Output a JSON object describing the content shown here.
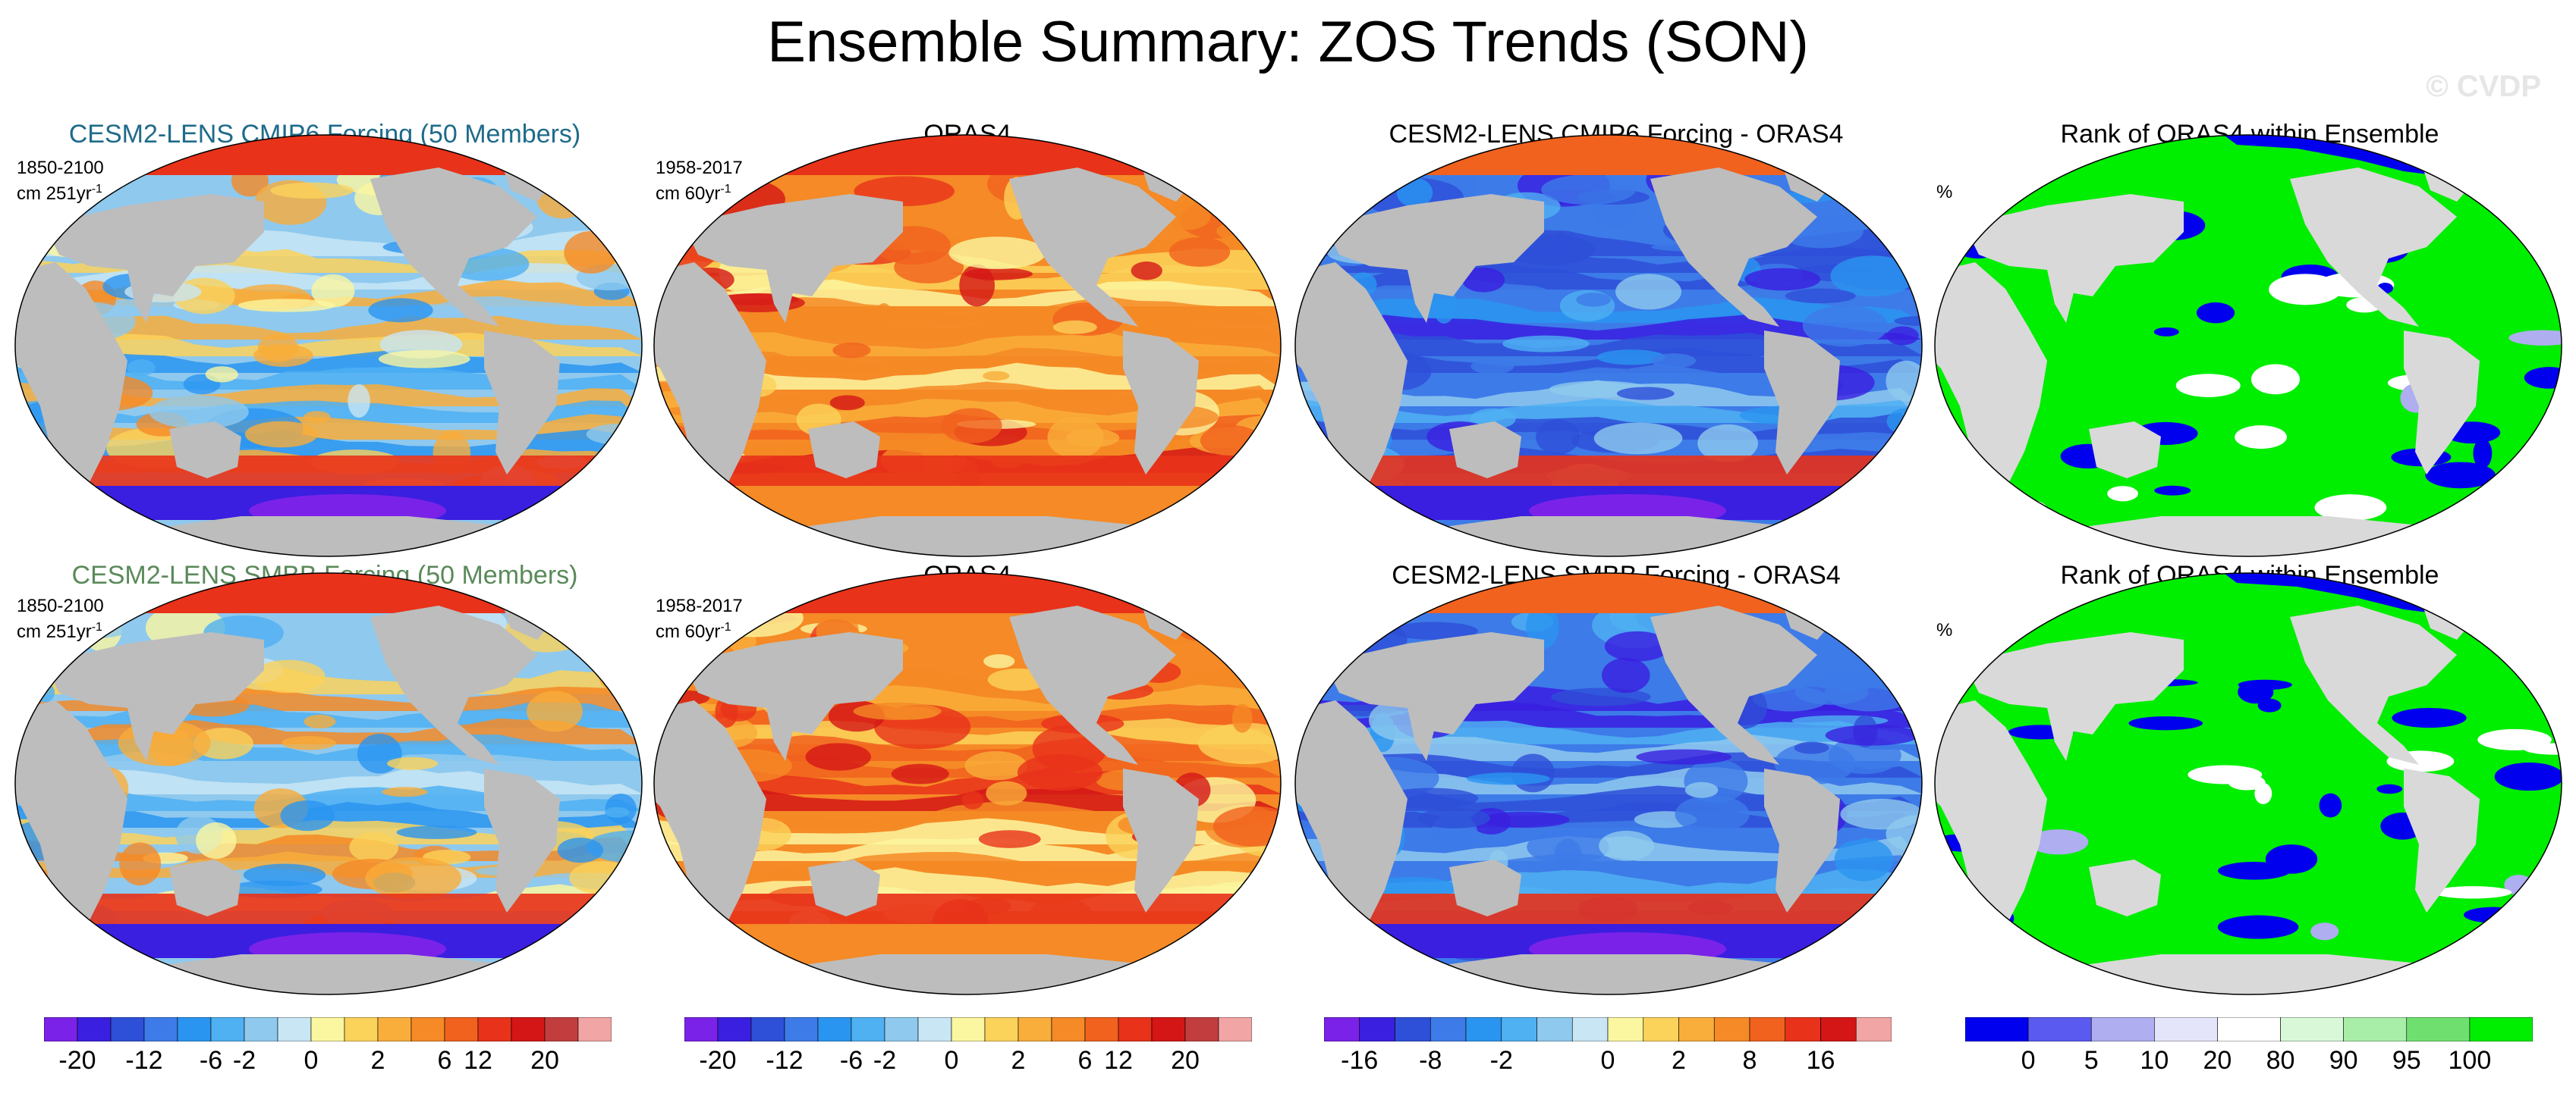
{
  "page": {
    "title": "Ensemble Summary: ZOS Trends (SON)",
    "watermark": "© CVDP"
  },
  "chart_data": [
    {
      "type": "heatmap",
      "title": "CESM2-LENS CMIP6 Forcing (50 Members)",
      "title_color": "#1f6b8a",
      "period": "1850-2100",
      "units": "cm 251yr",
      "sup": "-1",
      "map_style": "ensemble"
    },
    {
      "type": "heatmap",
      "title": "ORAS4",
      "title_color": "#000000",
      "period": "1958-2017",
      "units": "cm 60yr",
      "sup": "-1",
      "map_style": "obs"
    },
    {
      "type": "heatmap",
      "title": "CESM2-LENS CMIP6 Forcing - ORAS4",
      "title_color": "#000000",
      "period": "",
      "units": "",
      "sup": "",
      "map_style": "diff"
    },
    {
      "type": "heatmap",
      "title": "Rank of ORAS4 within Ensemble",
      "title_color": "#000000",
      "period": "",
      "units": "%",
      "sup": "",
      "map_style": "rank"
    },
    {
      "type": "heatmap",
      "title": "CESM2-LENS SMBB Forcing (50 Members)",
      "title_color": "#5a8a5a",
      "period": "1850-2100",
      "units": "cm 251yr",
      "sup": "-1",
      "map_style": "ensemble"
    },
    {
      "type": "heatmap",
      "title": "ORAS4",
      "title_color": "#000000",
      "period": "1958-2017",
      "units": "cm 60yr",
      "sup": "-1",
      "map_style": "obs"
    },
    {
      "type": "heatmap",
      "title": "CESM2-LENS SMBB Forcing - ORAS4",
      "title_color": "#000000",
      "period": "",
      "units": "",
      "sup": "",
      "map_style": "diff"
    },
    {
      "type": "heatmap",
      "title": "Rank of ORAS4 within Ensemble",
      "title_color": "#000000",
      "period": "",
      "units": "%",
      "sup": "",
      "map_style": "rank"
    }
  ],
  "colorbars": [
    {
      "name": "trend-colorbar-1",
      "colors": [
        "#7b22e8",
        "#3a1fe0",
        "#2e4fd8",
        "#3d7be8",
        "#2a95f0",
        "#4fb0f2",
        "#8fc9ee",
        "#c8e6f4",
        "#fbf6a0",
        "#fbd25a",
        "#f9ad3a",
        "#f58a26",
        "#f1621e",
        "#e8321a",
        "#d41616",
        "#c23e3e",
        "#f2a5a5"
      ],
      "labels": [
        "-20",
        "-12",
        "-6",
        "-2",
        "0",
        "2",
        "6",
        "12",
        "20"
      ]
    },
    {
      "name": "trend-colorbar-2",
      "colors": [
        "#7b22e8",
        "#3a1fe0",
        "#2e4fd8",
        "#3d7be8",
        "#2a95f0",
        "#4fb0f2",
        "#8fc9ee",
        "#c8e6f4",
        "#fbf6a0",
        "#fbd25a",
        "#f9ad3a",
        "#f58a26",
        "#f1621e",
        "#e8321a",
        "#d41616",
        "#c23e3e",
        "#f2a5a5"
      ],
      "labels": [
        "-20",
        "-12",
        "-6",
        "-2",
        "0",
        "2",
        "6",
        "12",
        "20"
      ]
    },
    {
      "name": "diff-colorbar",
      "colors": [
        "#7b22e8",
        "#3a1fe0",
        "#2e4fd8",
        "#3d7be8",
        "#2a95f0",
        "#4fb0f2",
        "#8fc9ee",
        "#c8e6f4",
        "#fbf6a0",
        "#fbd25a",
        "#f9ad3a",
        "#f58a26",
        "#f1621e",
        "#e8321a",
        "#d41616",
        "#f2a5a5"
      ],
      "labels": [
        "-16",
        "-8",
        "-2",
        "0",
        "2",
        "8",
        "16"
      ]
    },
    {
      "name": "rank-colorbar",
      "colors": [
        "#0000ee",
        "#5a5af0",
        "#aeaef0",
        "#e4e4fa",
        "#ffffff",
        "#d8f8d8",
        "#a8eea8",
        "#6fe06f",
        "#00ee00"
      ],
      "labels": [
        "0",
        "5",
        "10",
        "20",
        "80",
        "90",
        "95",
        "100"
      ]
    }
  ]
}
